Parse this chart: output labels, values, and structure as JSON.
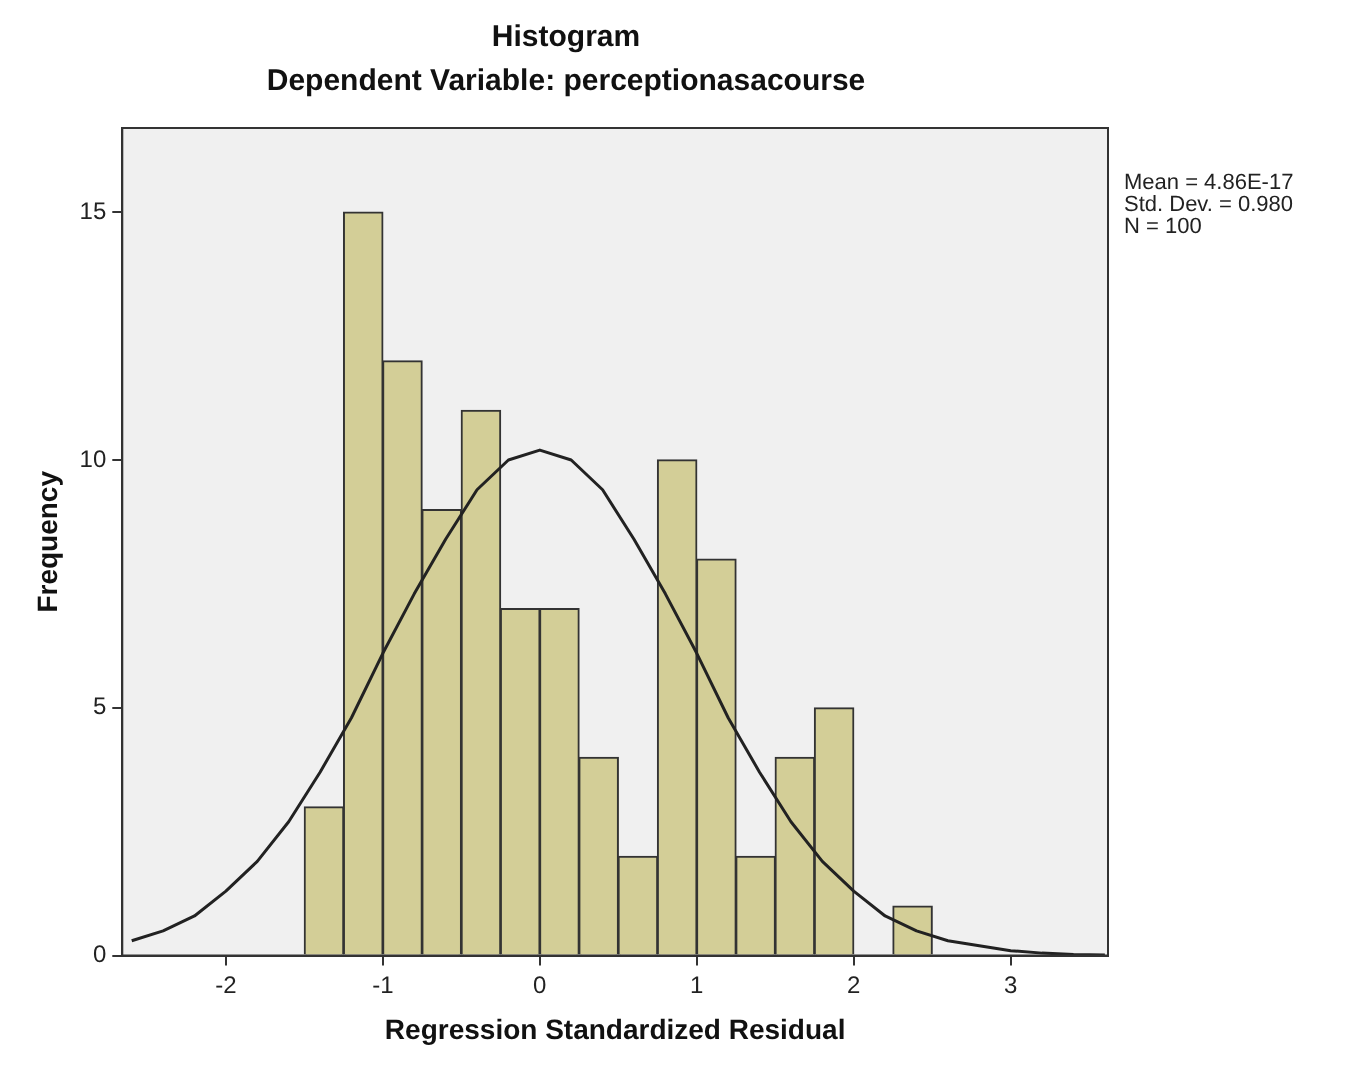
{
  "chart_data": {
    "type": "histogram",
    "title": "Histogram",
    "subtitle": "Dependent Variable: perceptionasacourse",
    "xlabel": "Regression Standardized Residual",
    "ylabel": "Frequency",
    "bins": [
      -1.5,
      -1.25,
      -1.0,
      -0.75,
      -0.5,
      -0.25,
      0,
      0.25,
      0.5,
      0.75,
      1.0,
      1.25,
      1.5,
      1.75,
      2.0,
      2.25,
      2.5
    ],
    "values": [
      3,
      15,
      12,
      9,
      11,
      7,
      7,
      4,
      2,
      10,
      8,
      2,
      4,
      5,
      0,
      1
    ],
    "color": "#d3ce97",
    "series": [
      {
        "type": "line",
        "color": "#222222",
        "x": [
          -2.6,
          -2.4,
          -2.2,
          -2.0,
          -1.8,
          -1.6,
          -1.4,
          -1.2,
          -1.0,
          -0.8,
          -0.6,
          -0.4,
          -0.2,
          0,
          0.2,
          0.4,
          0.6,
          0.8,
          1.0,
          1.2,
          1.4,
          1.6,
          1.8,
          2.0,
          2.2,
          2.4,
          2.6,
          2.8,
          3.0,
          3.2,
          3.4,
          3.6
        ],
        "values": [
          0.3,
          0.5,
          0.8,
          1.3,
          1.9,
          2.7,
          3.7,
          4.8,
          6.1,
          7.3,
          8.4,
          9.4,
          10.0,
          10.2,
          10.0,
          9.4,
          8.4,
          7.3,
          6.1,
          4.8,
          3.7,
          2.7,
          1.9,
          1.3,
          0.8,
          0.5,
          0.3,
          0.2,
          0.1,
          0.05,
          0.02,
          0.01
        ]
      }
    ],
    "xlim": [
      -2.66,
      3.62
    ],
    "xticks": [
      -2,
      -1,
      0,
      1,
      2,
      3
    ],
    "ylim": [
      0,
      16.7
    ],
    "yticks": [
      0,
      5,
      10,
      15
    ],
    "annotations": [
      "Mean = 4.86E-17",
      "Std. Dev. = 0.980",
      "N = 100"
    ],
    "grid": false,
    "legend": false,
    "marker": "none"
  }
}
